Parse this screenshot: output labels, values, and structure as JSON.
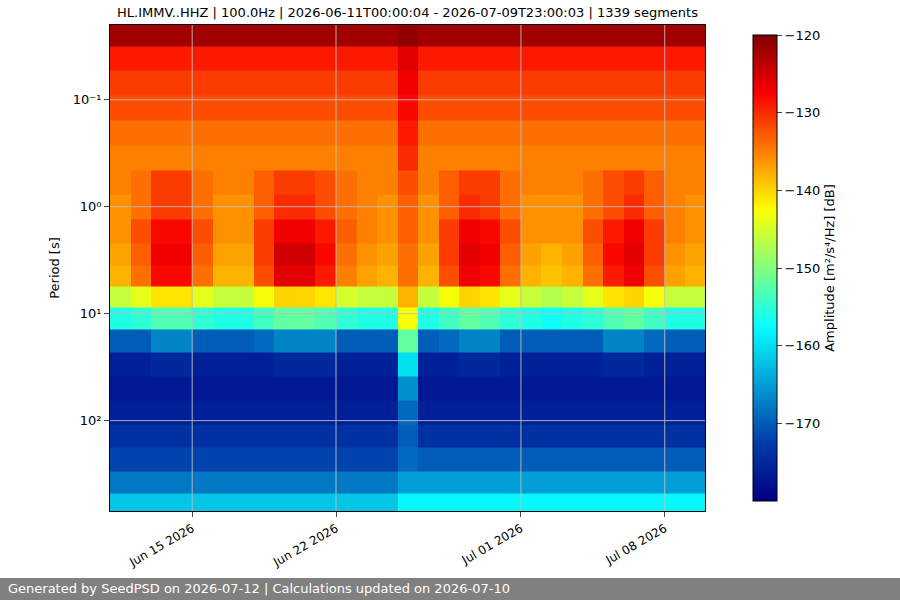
{
  "chart_data": {
    "type": "heatmap",
    "title": "HL.IMMV..HHZ | 100.0Hz | 2026-06-11T00:00:04 - 2026-07-09T23:00:03 | 1339 segments",
    "y_label": "Period [s]",
    "footer": "Generated by SeedPSD on 2026-07-12 | Calculations updated on 2026-07-10",
    "color": "Jet",
    "log": "y",
    "grid": true,
    "x": [
      "2026-06-11",
      "2026-06-12",
      "2026-06-13",
      "2026-06-14",
      "2026-06-15",
      "2026-06-16",
      "2026-06-17",
      "2026-06-18",
      "2026-06-19",
      "2026-06-20",
      "2026-06-21",
      "2026-06-22",
      "2026-06-23",
      "2026-06-24",
      "2026-06-25",
      "2026-06-26",
      "2026-06-27",
      "2026-06-28",
      "2026-06-29",
      "2026-06-30",
      "2026-07-01",
      "2026-07-02",
      "2026-07-03",
      "2026-07-04",
      "2026-07-05",
      "2026-07-06",
      "2026-07-07",
      "2026-07-08",
      "2026-07-09",
      "2026-07-10"
    ],
    "y": [
      0.025,
      0.04,
      0.07,
      0.12,
      0.2,
      0.35,
      0.6,
      1,
      1.7,
      2.8,
      4.5,
      7,
      11,
      18,
      30,
      50,
      85,
      140,
      230,
      380,
      600
    ],
    "values": [
      [
        -122,
        -122,
        -122,
        -122,
        -122,
        -122,
        -122,
        -122,
        -122,
        -122,
        -122,
        -122,
        -122,
        -122,
        -121,
        -122,
        -122,
        -122,
        -122,
        -122,
        -122,
        -122,
        -122,
        -122,
        -122,
        -122,
        -122,
        -122,
        -122
      ],
      [
        -129,
        -129,
        -129,
        -129,
        -129,
        -129,
        -129,
        -129,
        -129,
        -129,
        -129,
        -129,
        -129,
        -129,
        -126,
        -129,
        -129,
        -129,
        -129,
        -129,
        -129,
        -129,
        -129,
        -129,
        -129,
        -129,
        -129,
        -129,
        -129
      ],
      [
        -131,
        -131,
        -131,
        -131,
        -131,
        -131,
        -131,
        -131,
        -131,
        -131,
        -131,
        -131,
        -131,
        -131,
        -127,
        -131,
        -131,
        -131,
        -131,
        -131,
        -131,
        -131,
        -131,
        -131,
        -131,
        -131,
        -131,
        -131,
        -131
      ],
      [
        -132,
        -132,
        -132,
        -132,
        -132,
        -132,
        -132,
        -132,
        -132,
        -132,
        -132,
        -132,
        -132,
        -132,
        -128,
        -132,
        -132,
        -132,
        -132,
        -132,
        -132,
        -132,
        -132,
        -132,
        -132,
        -132,
        -132,
        -132,
        -132
      ],
      [
        -134,
        -134,
        -134,
        -134,
        -134,
        -134,
        -134,
        -134,
        -134,
        -134,
        -134,
        -134,
        -134,
        -134,
        -129,
        -134,
        -134,
        -134,
        -134,
        -134,
        -134,
        -134,
        -134,
        -134,
        -134,
        -134,
        -134,
        -134,
        -134
      ],
      [
        -135,
        -135,
        -135,
        -135,
        -135,
        -135,
        -135,
        -135,
        -135,
        -135,
        -135,
        -135,
        -135,
        -135,
        -130,
        -135,
        -135,
        -135,
        -135,
        -135,
        -135,
        -135,
        -135,
        -135,
        -135,
        -135,
        -135,
        -135,
        -135
      ],
      [
        -135,
        -134,
        -131,
        -131,
        -134,
        -135,
        -135,
        -133,
        -131,
        -131,
        -132,
        -134,
        -135,
        -135,
        -132,
        -135,
        -133,
        -131,
        -131,
        -134,
        -135,
        -135,
        -135,
        -134,
        -132,
        -131,
        -133,
        -135,
        -135
      ],
      [
        -136,
        -134,
        -131,
        -131,
        -134,
        -136,
        -136,
        -133,
        -130,
        -130,
        -132,
        -134,
        -135,
        -136,
        -133,
        -136,
        -133,
        -130,
        -131,
        -134,
        -136,
        -136,
        -136,
        -134,
        -132,
        -130,
        -133,
        -135,
        -136
      ],
      [
        -136,
        -132,
        -128,
        -128,
        -132,
        -136,
        -136,
        -131,
        -127,
        -127,
        -129,
        -133,
        -135,
        -136,
        -133,
        -136,
        -131,
        -127,
        -128,
        -132,
        -136,
        -136,
        -136,
        -132,
        -129,
        -127,
        -131,
        -135,
        -136
      ],
      [
        -137,
        -133,
        -127,
        -127,
        -133,
        -137,
        -137,
        -131,
        -125,
        -125,
        -128,
        -134,
        -136,
        -137,
        -134,
        -137,
        -131,
        -126,
        -127,
        -133,
        -137,
        -138,
        -137,
        -133,
        -128,
        -126,
        -131,
        -136,
        -137
      ],
      [
        -138,
        -134,
        -128,
        -128,
        -134,
        -138,
        -138,
        -132,
        -126,
        -126,
        -129,
        -135,
        -137,
        -138,
        -134,
        -138,
        -132,
        -127,
        -128,
        -134,
        -138,
        -139,
        -138,
        -134,
        -129,
        -127,
        -132,
        -137,
        -138
      ],
      [
        -146,
        -144,
        -141,
        -141,
        -144,
        -146,
        -146,
        -143,
        -140,
        -140,
        -141,
        -145,
        -146,
        -146,
        -138,
        -146,
        -143,
        -140,
        -141,
        -144,
        -146,
        -147,
        -146,
        -144,
        -141,
        -140,
        -143,
        -146,
        -146
      ],
      [
        -156,
        -155,
        -153,
        -153,
        -155,
        -156,
        -156,
        -154,
        -152,
        -152,
        -153,
        -155,
        -156,
        -156,
        -143,
        -156,
        -154,
        -152,
        -153,
        -155,
        -156,
        -157,
        -156,
        -155,
        -153,
        -152,
        -154,
        -156,
        -156
      ],
      [
        -170,
        -170,
        -167,
        -167,
        -170,
        -170,
        -170,
        -169,
        -167,
        -167,
        -167,
        -170,
        -170,
        -170,
        -152,
        -170,
        -169,
        -167,
        -167,
        -170,
        -170,
        -170,
        -170,
        -170,
        -167,
        -167,
        -169,
        -170,
        -170
      ],
      [
        -176,
        -176,
        -175,
        -175,
        -176,
        -176,
        -176,
        -176,
        -175,
        -175,
        -175,
        -176,
        -176,
        -176,
        -160,
        -176,
        -176,
        -175,
        -175,
        -176,
        -176,
        -176,
        -176,
        -176,
        -175,
        -175,
        -176,
        -176,
        -176
      ],
      [
        -177,
        -177,
        -177,
        -177,
        -177,
        -177,
        -177,
        -177,
        -177,
        -177,
        -177,
        -177,
        -177,
        -177,
        -166,
        -177,
        -177,
        -177,
        -177,
        -177,
        -177,
        -177,
        -177,
        -177,
        -177,
        -177,
        -177,
        -177,
        -177
      ],
      [
        -176,
        -176,
        -176,
        -176,
        -176,
        -176,
        -176,
        -176,
        -176,
        -176,
        -176,
        -176,
        -176,
        -176,
        -169,
        -176,
        -176,
        -176,
        -176,
        -176,
        -176,
        -176,
        -176,
        -176,
        -176,
        -176,
        -176,
        -176,
        -176
      ],
      [
        -174,
        -174,
        -174,
        -174,
        -174,
        -174,
        -174,
        -174,
        -174,
        -174,
        -174,
        -174,
        -174,
        -174,
        -170,
        -174,
        -174,
        -174,
        -174,
        -174,
        -174,
        -174,
        -174,
        -174,
        -174,
        -174,
        -174,
        -174,
        -174
      ],
      [
        -172,
        -172,
        -172,
        -172,
        -172,
        -172,
        -172,
        -172,
        -172,
        -172,
        -172,
        -172,
        -172,
        -172,
        -169,
        -170,
        -170,
        -170,
        -170,
        -170,
        -170,
        -170,
        -170,
        -170,
        -170,
        -170,
        -170,
        -170,
        -170
      ],
      [
        -168,
        -168,
        -168,
        -168,
        -168,
        -168,
        -168,
        -168,
        -168,
        -168,
        -168,
        -168,
        -168,
        -168,
        -165,
        -165,
        -165,
        -165,
        -165,
        -165,
        -165,
        -165,
        -165,
        -165,
        -165,
        -165,
        -165,
        -165,
        -165
      ],
      [
        -162,
        -162,
        -162,
        -162,
        -162,
        -162,
        -162,
        -162,
        -162,
        -162,
        -162,
        -162,
        -162,
        -162,
        -158,
        -158,
        -158,
        -158,
        -158,
        -158,
        -158,
        -158,
        -158,
        -158,
        -158,
        -158,
        -158,
        -158,
        -158
      ]
    ],
    "xlim": [
      "2026-06-11T00:00:04",
      "2026-07-09T23:00:03"
    ],
    "xticks": [
      {
        "value": "2026-06-15",
        "label": "Jun 15 2026"
      },
      {
        "value": "2026-06-22",
        "label": "Jun 22 2026"
      },
      {
        "value": "2026-07-01",
        "label": "Jul 01 2026"
      },
      {
        "value": "2026-07-08",
        "label": "Jul 08 2026"
      }
    ],
    "ylim": [
      0.02,
      700
    ],
    "yticks": [
      {
        "value": 0.1,
        "label": "10⁻¹"
      },
      {
        "value": 1,
        "label": "10⁰"
      },
      {
        "value": 10,
        "label": "10¹"
      },
      {
        "value": 100,
        "label": "10²"
      }
    ],
    "colorbar": {
      "title": "Amplitude [m²/s⁴/Hz] [dB]",
      "range": [
        -180,
        -120
      ],
      "ticks": [
        -170,
        -160,
        -150,
        -140,
        -130,
        -120
      ]
    }
  }
}
